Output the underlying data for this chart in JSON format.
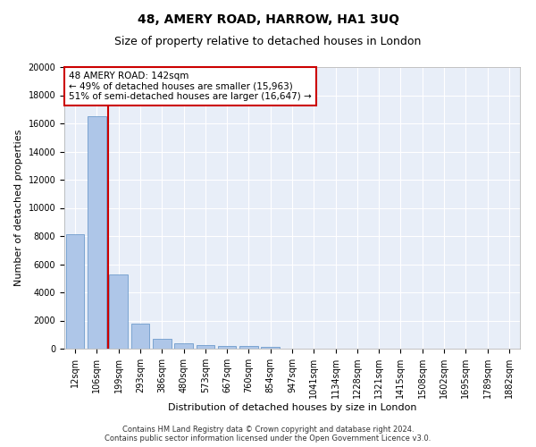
{
  "title": "48, AMERY ROAD, HARROW, HA1 3UQ",
  "subtitle": "Size of property relative to detached houses in London",
  "xlabel": "Distribution of detached houses by size in London",
  "ylabel": "Number of detached properties",
  "annotation_title": "48 AMERY ROAD: 142sqm",
  "annotation_line1": "← 49% of detached houses are smaller (15,963)",
  "annotation_line2": "51% of semi-detached houses are larger (16,647) →",
  "footer_line1": "Contains HM Land Registry data © Crown copyright and database right 2024.",
  "footer_line2": "Contains public sector information licensed under the Open Government Licence v3.0.",
  "bar_labels": [
    "12sqm",
    "106sqm",
    "199sqm",
    "293sqm",
    "386sqm",
    "480sqm",
    "573sqm",
    "667sqm",
    "760sqm",
    "854sqm",
    "947sqm",
    "1041sqm",
    "1134sqm",
    "1228sqm",
    "1321sqm",
    "1415sqm",
    "1508sqm",
    "1602sqm",
    "1695sqm",
    "1789sqm",
    "1882sqm"
  ],
  "bar_values": [
    8100,
    16500,
    5300,
    1750,
    700,
    380,
    280,
    220,
    180,
    150,
    0,
    0,
    0,
    0,
    0,
    0,
    0,
    0,
    0,
    0,
    0
  ],
  "bar_color": "#aec6e8",
  "bar_edge_color": "#5c8fc5",
  "red_line_x": 1.5,
  "red_line_color": "#cc0000",
  "ylim": [
    0,
    20000
  ],
  "yticks": [
    0,
    2000,
    4000,
    6000,
    8000,
    10000,
    12000,
    14000,
    16000,
    18000,
    20000
  ],
  "background_color": "#e8eef8",
  "grid_color": "#ffffff",
  "title_fontsize": 10,
  "subtitle_fontsize": 9,
  "axis_label_fontsize": 8,
  "tick_fontsize": 7,
  "annotation_fontsize": 7.5,
  "annotation_box_color": "#ffffff",
  "annotation_box_edge": "#cc0000",
  "footer_fontsize": 6
}
